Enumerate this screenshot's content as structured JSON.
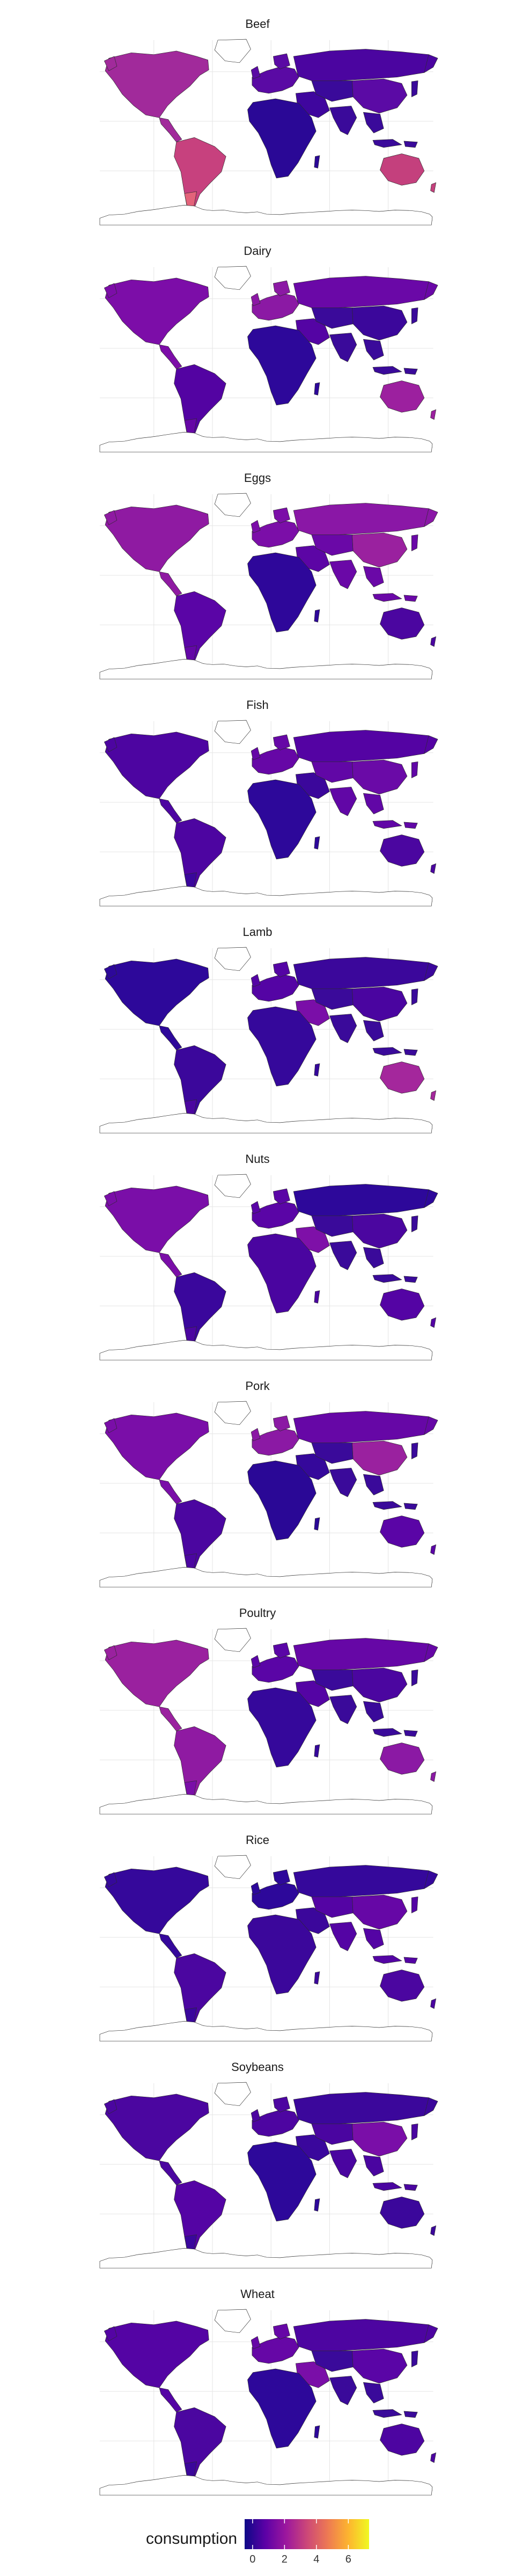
{
  "panels": [
    {
      "title": "Beef",
      "colors": {
        "na": "#a12a9b",
        "sa": "#c7417e",
        "ar": "#e3637a",
        "eu": "#5a0aa4",
        "ru": "#4b05a0",
        "asia": "#3a0a9a",
        "af": "#2a0896",
        "au": "#c4407d",
        "me": "#3f069e",
        "cn": "#5b0aa5"
      }
    },
    {
      "title": "Dairy",
      "colors": {
        "na": "#7c0da8",
        "sa": "#5303a2",
        "ar": "#6607a6",
        "eu": "#8b19a4",
        "ru": "#6a08a7",
        "asia": "#3a0a9a",
        "af": "#2d089a",
        "au": "#9c209f",
        "me": "#5404a4",
        "cn": "#3b079b"
      }
    },
    {
      "title": "Eggs",
      "colors": {
        "na": "#8f1aa2",
        "sa": "#5a05a6",
        "ar": "#6307a6",
        "eu": "#7b0ea8",
        "ru": "#8a17a6",
        "asia": "#6a08a7",
        "af": "#2e079a",
        "au": "#4b06a0",
        "me": "#5c05a5",
        "cn": "#9a219f"
      }
    },
    {
      "title": "Fish",
      "colors": {
        "na": "#4d05a1",
        "sa": "#4d05a1",
        "ar": "#3a079c",
        "eu": "#6607a6",
        "ru": "#5403a3",
        "asia": "#6107a6",
        "af": "#2d089a",
        "au": "#4b06a0",
        "me": "#3b079b",
        "cn": "#6a0aa7"
      }
    },
    {
      "title": "Lamb",
      "colors": {
        "na": "#2d089a",
        "sa": "#3b079b",
        "ar": "#4b06a0",
        "eu": "#5404a4",
        "ru": "#3b079b",
        "asia": "#3a0a9a",
        "af": "#35089b",
        "au": "#a4279c",
        "me": "#7a0ea8",
        "cn": "#4a05a0"
      }
    },
    {
      "title": "Nuts",
      "colors": {
        "na": "#7a0ea8",
        "sa": "#3a079c",
        "ar": "#4b06a0",
        "eu": "#5a05a6",
        "ru": "#2d089a",
        "asia": "#3a0a9a",
        "af": "#4a05a0",
        "au": "#5404a4",
        "me": "#7e10a8",
        "cn": "#4b06a0"
      }
    },
    {
      "title": "Pork",
      "colors": {
        "na": "#7a0ea8",
        "sa": "#4b06a0",
        "ar": "#4b06a0",
        "eu": "#8b19a4",
        "ru": "#6607a6",
        "asia": "#3a0a9a",
        "af": "#2a0896",
        "au": "#5a05a6",
        "me": "#35089b",
        "cn": "#9a219f"
      }
    },
    {
      "title": "Poultry",
      "colors": {
        "na": "#9a219f",
        "sa": "#8f1aa2",
        "ar": "#7a0ea8",
        "eu": "#5a05a6",
        "ru": "#6607a6",
        "asia": "#3a0a9a",
        "af": "#35089b",
        "au": "#8b19a4",
        "me": "#5404a4",
        "cn": "#4b06a0"
      }
    },
    {
      "title": "Rice",
      "colors": {
        "na": "#35089b",
        "sa": "#4b06a0",
        "ar": "#3a079c",
        "eu": "#2d089a",
        "ru": "#35089b",
        "asia": "#5404a4",
        "af": "#3b079b",
        "au": "#4b06a0",
        "me": "#3b079b",
        "cn": "#6607a6"
      }
    },
    {
      "title": "Soybeans",
      "colors": {
        "na": "#4b06a0",
        "sa": "#5404a4",
        "ar": "#3a079c",
        "eu": "#4d05a1",
        "ru": "#3b079b",
        "asia": "#4a05a0",
        "af": "#2d089a",
        "au": "#3b079b",
        "me": "#3a079c",
        "cn": "#7a0ea8"
      }
    },
    {
      "title": "Wheat",
      "colors": {
        "na": "#5404a4",
        "sa": "#4b06a0",
        "ar": "#3b079b",
        "eu": "#6607a6",
        "ru": "#4d05a1",
        "asia": "#3a0a9a",
        "af": "#2d089a",
        "au": "#4d05a1",
        "me": "#7a0ea8",
        "cn": "#5a05a6"
      }
    }
  ],
  "legend": {
    "title": "consumption",
    "ticks": [
      "0",
      "2",
      "4",
      "6"
    ],
    "tick_values": [
      0,
      2,
      4,
      6
    ],
    "range": [
      -0.5,
      7.3
    ],
    "gradient": [
      "#0d0887",
      "#5c01a6",
      "#9c179e",
      "#cc4778",
      "#ed7953",
      "#fdb42f",
      "#f0f921"
    ]
  }
}
